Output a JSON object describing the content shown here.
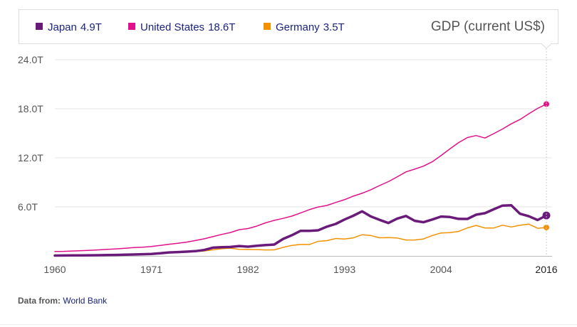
{
  "chart_data": {
    "type": "line",
    "title": "GDP (current US$)",
    "xlabel": "",
    "ylabel": "",
    "xlim": [
      1960,
      2016
    ],
    "ylim": [
      0,
      24
    ],
    "y_ticks": [
      {
        "value": 6,
        "label": "6.0T"
      },
      {
        "value": 12,
        "label": "12.0T"
      },
      {
        "value": 18,
        "label": "18.0T"
      },
      {
        "value": 24,
        "label": "24.0T"
      }
    ],
    "x_ticks": [
      {
        "value": 1960,
        "label": "1960"
      },
      {
        "value": 1971,
        "label": "1971"
      },
      {
        "value": 1982,
        "label": "1982"
      },
      {
        "value": 1993,
        "label": "1993"
      },
      {
        "value": 2004,
        "label": "2004"
      },
      {
        "value": 2016,
        "label": "2016"
      }
    ],
    "highlight_x": 2016,
    "series": [
      {
        "name": "Japan",
        "legend_value": "4.9T",
        "color": "#6a1b7a",
        "width": 3.5,
        "x": [
          1960,
          1961,
          1962,
          1963,
          1964,
          1965,
          1966,
          1967,
          1968,
          1969,
          1970,
          1971,
          1972,
          1973,
          1974,
          1975,
          1976,
          1977,
          1978,
          1979,
          1980,
          1981,
          1982,
          1983,
          1984,
          1985,
          1986,
          1987,
          1988,
          1989,
          1990,
          1991,
          1992,
          1993,
          1994,
          1995,
          1996,
          1997,
          1998,
          1999,
          2000,
          2001,
          2002,
          2003,
          2004,
          2005,
          2006,
          2007,
          2008,
          2009,
          2010,
          2011,
          2012,
          2013,
          2014,
          2015,
          2016
        ],
        "values": [
          0.04,
          0.05,
          0.06,
          0.07,
          0.08,
          0.09,
          0.11,
          0.12,
          0.15,
          0.17,
          0.21,
          0.24,
          0.32,
          0.43,
          0.47,
          0.52,
          0.58,
          0.72,
          1.01,
          1.06,
          1.1,
          1.21,
          1.13,
          1.24,
          1.32,
          1.39,
          2.08,
          2.53,
          3.07,
          3.06,
          3.13,
          3.58,
          3.91,
          4.45,
          4.91,
          5.45,
          4.83,
          4.41,
          4.03,
          4.56,
          4.89,
          4.3,
          4.12,
          4.45,
          4.82,
          4.76,
          4.53,
          4.52,
          5.04,
          5.23,
          5.7,
          6.16,
          6.2,
          5.16,
          4.85,
          4.39,
          4.95
        ]
      },
      {
        "name": "United States",
        "legend_value": "18.6T",
        "color": "#e0118a",
        "width": 1.5,
        "x": [
          1960,
          1961,
          1962,
          1963,
          1964,
          1965,
          1966,
          1967,
          1968,
          1969,
          1970,
          1971,
          1972,
          1973,
          1974,
          1975,
          1976,
          1977,
          1978,
          1979,
          1980,
          1981,
          1982,
          1983,
          1984,
          1985,
          1986,
          1987,
          1988,
          1989,
          1990,
          1991,
          1992,
          1993,
          1994,
          1995,
          1996,
          1997,
          1998,
          1999,
          2000,
          2001,
          2002,
          2003,
          2004,
          2005,
          2006,
          2007,
          2008,
          2009,
          2010,
          2011,
          2012,
          2013,
          2014,
          2015,
          2016
        ],
        "values": [
          0.54,
          0.56,
          0.6,
          0.64,
          0.69,
          0.74,
          0.81,
          0.86,
          0.94,
          1.02,
          1.07,
          1.16,
          1.28,
          1.43,
          1.55,
          1.69,
          1.88,
          2.09,
          2.36,
          2.63,
          2.86,
          3.21,
          3.35,
          3.64,
          4.04,
          4.35,
          4.59,
          4.87,
          5.25,
          5.66,
          5.98,
          6.17,
          6.54,
          6.88,
          7.31,
          7.66,
          8.1,
          8.61,
          9.09,
          9.66,
          10.28,
          10.62,
          10.98,
          11.51,
          12.27,
          13.09,
          13.86,
          14.48,
          14.72,
          14.42,
          14.96,
          15.52,
          16.16,
          16.69,
          17.39,
          18.04,
          18.57
        ]
      },
      {
        "name": "Germany",
        "legend_value": "3.5T",
        "color": "#f39200",
        "width": 1.5,
        "x": [
          1970,
          1971,
          1972,
          1973,
          1974,
          1975,
          1976,
          1977,
          1978,
          1979,
          1980,
          1981,
          1982,
          1983,
          1984,
          1985,
          1986,
          1987,
          1988,
          1989,
          1990,
          1991,
          1992,
          1993,
          1994,
          1995,
          1996,
          1997,
          1998,
          1999,
          2000,
          2001,
          2002,
          2003,
          2004,
          2005,
          2006,
          2007,
          2008,
          2009,
          2010,
          2011,
          2012,
          2013,
          2014,
          2015,
          2016
        ],
        "values": [
          0.21,
          0.24,
          0.3,
          0.4,
          0.45,
          0.49,
          0.52,
          0.6,
          0.74,
          0.88,
          0.95,
          0.8,
          0.78,
          0.77,
          0.73,
          0.74,
          1.04,
          1.29,
          1.4,
          1.4,
          1.77,
          1.87,
          2.13,
          2.07,
          2.21,
          2.59,
          2.5,
          2.22,
          2.24,
          2.19,
          1.95,
          1.95,
          2.08,
          2.5,
          2.81,
          2.85,
          2.99,
          3.43,
          3.73,
          3.42,
          3.42,
          3.76,
          3.54,
          3.75,
          3.89,
          3.38,
          3.48
        ]
      }
    ]
  },
  "source": {
    "label": "Data from:",
    "name": "World Bank"
  }
}
